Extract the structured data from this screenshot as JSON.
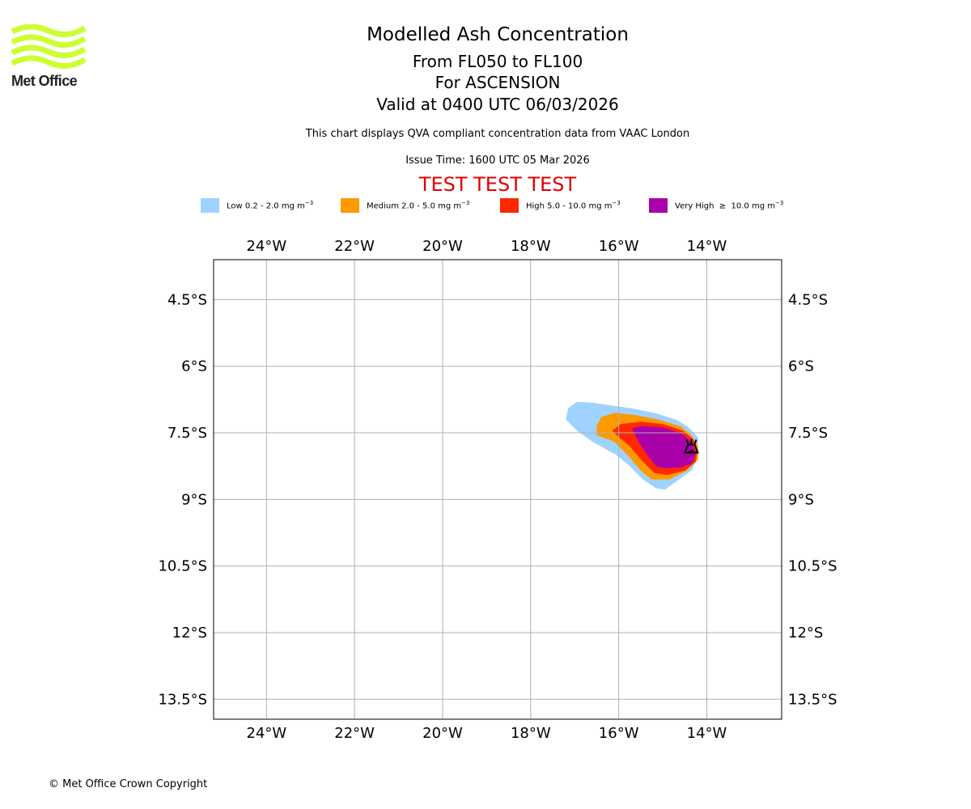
{
  "logo": {
    "text": "Met Office",
    "color": "#ccff33"
  },
  "header": {
    "title": "Modelled Ash Concentration",
    "levels": "From FL050 to FL100",
    "location": "For ASCENSION",
    "valid": "Valid at 0400 UTC 06/03/2026",
    "subtitle": "This chart displays QVA compliant concentration data from VAAC London",
    "issue_time": "Issue Time: 1600 UTC 05 Mar 2026",
    "test_banner": "TEST TEST TEST"
  },
  "legend": [
    {
      "label": "Low 0.2 - 2.0 mg m",
      "unit_exp": "−3",
      "color": "#a0d2ff"
    },
    {
      "label": "Medium 2.0 - 5.0 mg m",
      "unit_exp": "−3",
      "color": "#ff9900"
    },
    {
      "label": "High 5.0 - 10.0 mg m",
      "unit_exp": "−3",
      "color": "#ff2800"
    },
    {
      "label": "Very High  ≥  10.0 mg m",
      "unit_exp": "−3",
      "color": "#aa00aa"
    }
  ],
  "map": {
    "lon_range": [
      -25.2,
      -12.3
    ],
    "lat_range": [
      -3.6,
      -13.95
    ],
    "lon_ticks": [
      {
        "value": -24,
        "label": "24°W"
      },
      {
        "value": -22,
        "label": "22°W"
      },
      {
        "value": -20,
        "label": "20°W"
      },
      {
        "value": -18,
        "label": "18°W"
      },
      {
        "value": -16,
        "label": "16°W"
      },
      {
        "value": -14,
        "label": "14°W"
      }
    ],
    "lat_ticks": [
      {
        "value": -4.5,
        "label": "4.5°S"
      },
      {
        "value": -6,
        "label": "6°S"
      },
      {
        "value": -7.5,
        "label": "7.5°S"
      },
      {
        "value": -9,
        "label": "9°S"
      },
      {
        "value": -10.5,
        "label": "10.5°S"
      },
      {
        "value": -12,
        "label": "12°S"
      },
      {
        "value": -13.5,
        "label": "13.5°S"
      }
    ],
    "grid_color": "#b0b0b0",
    "volcano": {
      "lon": -14.35,
      "lat": -7.8,
      "symbol": "volcano-icon"
    },
    "contours": [
      {
        "level": "Low",
        "color": "#a0d2ff",
        "points": [
          [
            -17.15,
            -6.95
          ],
          [
            -16.95,
            -6.8
          ],
          [
            -16.6,
            -6.82
          ],
          [
            -16.2,
            -6.88
          ],
          [
            -15.7,
            -6.95
          ],
          [
            -15.2,
            -7.05
          ],
          [
            -14.7,
            -7.2
          ],
          [
            -14.45,
            -7.35
          ],
          [
            -14.2,
            -7.6
          ],
          [
            -14.2,
            -8.05
          ],
          [
            -14.35,
            -8.35
          ],
          [
            -14.7,
            -8.6
          ],
          [
            -14.95,
            -8.78
          ],
          [
            -15.15,
            -8.75
          ],
          [
            -15.45,
            -8.55
          ],
          [
            -15.75,
            -8.25
          ],
          [
            -16.05,
            -8.0
          ],
          [
            -16.6,
            -7.7
          ],
          [
            -16.95,
            -7.45
          ],
          [
            -17.2,
            -7.2
          ]
        ]
      },
      {
        "level": "Medium",
        "color": "#ff9900",
        "points": [
          [
            -16.5,
            -7.35
          ],
          [
            -16.4,
            -7.15
          ],
          [
            -16.1,
            -7.05
          ],
          [
            -15.6,
            -7.1
          ],
          [
            -15.1,
            -7.2
          ],
          [
            -14.6,
            -7.35
          ],
          [
            -14.35,
            -7.55
          ],
          [
            -14.2,
            -7.8
          ],
          [
            -14.2,
            -8.1
          ],
          [
            -14.45,
            -8.35
          ],
          [
            -14.85,
            -8.55
          ],
          [
            -15.25,
            -8.55
          ],
          [
            -15.5,
            -8.35
          ],
          [
            -15.8,
            -8.0
          ],
          [
            -16.1,
            -7.7
          ],
          [
            -16.5,
            -7.55
          ]
        ]
      },
      {
        "level": "High",
        "color": "#ff2800",
        "points": [
          [
            -16.15,
            -7.45
          ],
          [
            -15.95,
            -7.3
          ],
          [
            -15.5,
            -7.25
          ],
          [
            -15.0,
            -7.3
          ],
          [
            -14.55,
            -7.45
          ],
          [
            -14.3,
            -7.65
          ],
          [
            -14.22,
            -7.9
          ],
          [
            -14.25,
            -8.15
          ],
          [
            -14.5,
            -8.35
          ],
          [
            -14.9,
            -8.45
          ],
          [
            -15.2,
            -8.4
          ],
          [
            -15.45,
            -8.15
          ],
          [
            -15.75,
            -7.8
          ],
          [
            -16.0,
            -7.6
          ]
        ]
      },
      {
        "level": "Very High",
        "color": "#aa00aa",
        "points": [
          [
            -15.7,
            -7.4
          ],
          [
            -15.5,
            -7.35
          ],
          [
            -15.0,
            -7.38
          ],
          [
            -14.6,
            -7.5
          ],
          [
            -14.35,
            -7.7
          ],
          [
            -14.25,
            -7.95
          ],
          [
            -14.35,
            -8.2
          ],
          [
            -14.6,
            -8.28
          ],
          [
            -14.95,
            -8.3
          ],
          [
            -15.15,
            -8.25
          ],
          [
            -15.35,
            -8.0
          ],
          [
            -15.55,
            -7.7
          ]
        ]
      }
    ]
  },
  "footer": {
    "copyright": "© Met Office Crown Copyright"
  }
}
